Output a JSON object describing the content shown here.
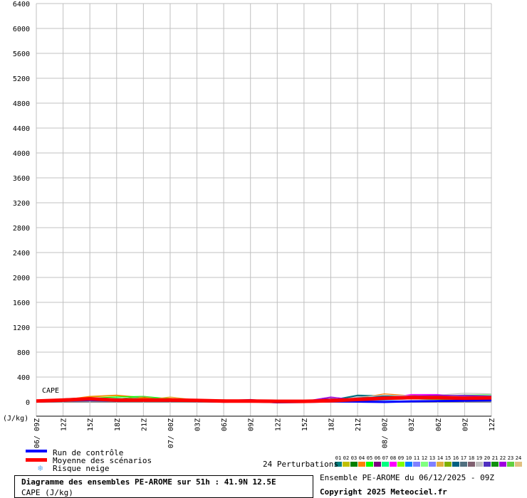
{
  "chart_data": {
    "type": "line",
    "title": "Diagramme des ensembles PE-AROME sur 51h : 41.9N 12.5E",
    "subtitle": "CAPE (J/kg)",
    "ylabel": "(J/kg)",
    "series_label": "CAPE",
    "ylim": [
      0,
      6400
    ],
    "yticks": [
      0,
      400,
      800,
      1200,
      1600,
      2000,
      2400,
      2800,
      3200,
      3600,
      4000,
      4400,
      4800,
      5200,
      5600,
      6000,
      6400
    ],
    "x": [
      "06/ 09Z",
      "12Z",
      "15Z",
      "18Z",
      "21Z",
      "07/ 00Z",
      "03Z",
      "06Z",
      "09Z",
      "12Z",
      "15Z",
      "18Z",
      "21Z",
      "08/ 00Z",
      "03Z",
      "06Z",
      "09Z",
      "12Z"
    ],
    "grid": true,
    "control": {
      "name": "Run de contrôle",
      "color": "#0000ff",
      "values": [
        5,
        20,
        30,
        20,
        25,
        20,
        15,
        5,
        10,
        -5,
        0,
        10,
        5,
        0,
        10,
        15,
        20,
        25
      ]
    },
    "mean": {
      "name": "Moyenne des scénarios",
      "color": "#ff0000",
      "values": [
        15,
        30,
        50,
        30,
        30,
        30,
        25,
        15,
        15,
        10,
        10,
        20,
        40,
        60,
        70,
        70,
        60,
        65
      ]
    },
    "perturbations_label": "24 Perturbations",
    "perturbations": [
      {
        "name": "01",
        "color": "#008080",
        "values": [
          10,
          40,
          60,
          40,
          50,
          30,
          25,
          20,
          20,
          10,
          10,
          30,
          110,
          100,
          90,
          80,
          70,
          80
        ]
      },
      {
        "name": "02",
        "color": "#c0c000",
        "values": [
          5,
          30,
          80,
          100,
          60,
          50,
          30,
          20,
          15,
          5,
          10,
          20,
          60,
          80,
          110,
          90,
          70,
          60
        ]
      },
      {
        "name": "03",
        "color": "#008000",
        "values": [
          20,
          50,
          70,
          50,
          80,
          40,
          30,
          35,
          20,
          10,
          15,
          25,
          50,
          70,
          80,
          60,
          40,
          50
        ]
      },
      {
        "name": "04",
        "color": "#ff8000",
        "values": [
          10,
          35,
          90,
          110,
          70,
          60,
          30,
          10,
          15,
          15,
          5,
          20,
          60,
          130,
          100,
          80,
          60,
          70
        ]
      },
      {
        "name": "05",
        "color": "#00ff00",
        "values": [
          15,
          25,
          60,
          80,
          90,
          50,
          30,
          20,
          25,
          10,
          20,
          30,
          50,
          60,
          70,
          50,
          40,
          45
        ]
      },
      {
        "name": "06",
        "color": "#800080",
        "values": [
          5,
          20,
          40,
          30,
          20,
          20,
          20,
          25,
          40,
          10,
          10,
          60,
          20,
          40,
          60,
          100,
          90,
          80
        ]
      },
      {
        "name": "07",
        "color": "#00ff80",
        "values": [
          10,
          30,
          50,
          60,
          40,
          30,
          20,
          15,
          20,
          10,
          10,
          20,
          40,
          60,
          90,
          110,
          100,
          90
        ]
      },
      {
        "name": "08",
        "color": "#ff00ff",
        "values": [
          5,
          25,
          40,
          30,
          30,
          20,
          20,
          10,
          15,
          5,
          5,
          20,
          30,
          60,
          120,
          120,
          90,
          70
        ]
      },
      {
        "name": "09",
        "color": "#80ff00",
        "values": [
          10,
          30,
          60,
          50,
          40,
          30,
          25,
          20,
          15,
          10,
          10,
          15,
          30,
          50,
          70,
          60,
          50,
          40
        ]
      },
      {
        "name": "10",
        "color": "#0080ff",
        "values": [
          5,
          20,
          30,
          20,
          20,
          20,
          15,
          10,
          10,
          5,
          5,
          10,
          20,
          30,
          50,
          40,
          30,
          35
        ]
      },
      {
        "name": "11",
        "color": "#8080ff",
        "values": [
          10,
          30,
          40,
          30,
          30,
          25,
          20,
          15,
          10,
          5,
          5,
          15,
          40,
          60,
          80,
          100,
          90,
          100
        ]
      },
      {
        "name": "12",
        "color": "#80ff80",
        "values": [
          15,
          35,
          50,
          40,
          35,
          25,
          20,
          15,
          10,
          5,
          10,
          20,
          40,
          60,
          80,
          70,
          110,
          120
        ]
      },
      {
        "name": "13",
        "color": "#8080ff",
        "values": [
          5,
          20,
          40,
          35,
          30,
          20,
          15,
          10,
          10,
          5,
          5,
          10,
          20,
          40,
          60,
          50,
          40,
          45
        ]
      },
      {
        "name": "14",
        "color": "#e0b040",
        "values": [
          10,
          30,
          50,
          40,
          30,
          80,
          30,
          20,
          10,
          5,
          10,
          15,
          30,
          50,
          70,
          60,
          50,
          60
        ]
      },
      {
        "name": "15",
        "color": "#80b000",
        "values": [
          5,
          20,
          40,
          30,
          25,
          20,
          15,
          10,
          10,
          5,
          5,
          10,
          25,
          40,
          50,
          40,
          30,
          30
        ]
      },
      {
        "name": "16",
        "color": "#006080",
        "values": [
          10,
          25,
          35,
          30,
          30,
          20,
          15,
          10,
          10,
          5,
          10,
          15,
          100,
          90,
          80,
          70,
          60,
          70
        ]
      },
      {
        "name": "17",
        "color": "#507080",
        "values": [
          5,
          20,
          30,
          25,
          20,
          15,
          10,
          10,
          5,
          5,
          5,
          10,
          70,
          80,
          90,
          100,
          110,
          100
        ]
      },
      {
        "name": "18",
        "color": "#806070",
        "values": [
          10,
          25,
          40,
          30,
          25,
          20,
          15,
          10,
          10,
          5,
          5,
          15,
          40,
          60,
          70,
          60,
          50,
          55
        ]
      },
      {
        "name": "19",
        "color": "#c0c0c0",
        "values": [
          5,
          20,
          35,
          30,
          25,
          20,
          15,
          10,
          10,
          5,
          5,
          15,
          80,
          110,
          100,
          110,
          140,
          130
        ]
      },
      {
        "name": "20",
        "color": "#5030c0",
        "values": [
          10,
          25,
          40,
          30,
          20,
          20,
          15,
          10,
          10,
          5,
          5,
          10,
          30,
          50,
          60,
          70,
          60,
          50
        ]
      },
      {
        "name": "21",
        "color": "#109010",
        "values": [
          15,
          30,
          50,
          40,
          35,
          25,
          20,
          15,
          10,
          5,
          10,
          20,
          40,
          60,
          80,
          70,
          80,
          90
        ]
      },
      {
        "name": "22",
        "color": "#a000e0",
        "values": [
          5,
          20,
          30,
          30,
          25,
          20,
          15,
          10,
          10,
          5,
          10,
          80,
          30,
          50,
          100,
          110,
          100,
          90
        ]
      },
      {
        "name": "23",
        "color": "#60d040",
        "values": [
          10,
          30,
          50,
          40,
          90,
          30,
          20,
          15,
          10,
          5,
          10,
          15,
          40,
          60,
          70,
          60,
          70,
          80
        ]
      },
      {
        "name": "24",
        "color": "#e0c080",
        "values": [
          5,
          20,
          35,
          30,
          25,
          20,
          15,
          10,
          10,
          5,
          5,
          10,
          30,
          50,
          60,
          50,
          40,
          50
        ]
      }
    ]
  },
  "legend": {
    "control": "Run de contrôle",
    "mean": "Moyenne des scénarios",
    "snow": "Risque neige"
  },
  "footer": {
    "run": "Ensemble PE-AROME du 06/12/2025 - 09Z",
    "copyright": "Copyright 2025 Meteociel.fr"
  }
}
